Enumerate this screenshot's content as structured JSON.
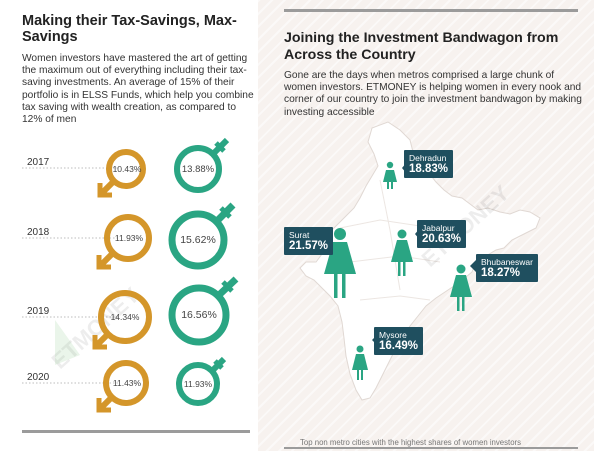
{
  "left": {
    "title": "Making their Tax-Savings, Max-Savings",
    "description": "Women investors have mastered the art of getting the maximum out of everything including their tax-saving investments. An average of 15% of their portfolio is in ELSS Funds, which help you combine tax saving with wealth creation, as compared to 12% of men",
    "rows": [
      {
        "year": "2017",
        "men": "10.43%",
        "women": "13.88%"
      },
      {
        "year": "2018",
        "men": "11.93%",
        "women": "15.62%"
      },
      {
        "year": "2019",
        "men": "14.34%",
        "women": "16.56%"
      },
      {
        "year": "2020",
        "men": "11.43%",
        "women": "11.93%"
      }
    ]
  },
  "right": {
    "title": "Joining the Investment Bandwagon from Across the Country",
    "description": "Gone are the days when metros comprised a large chunk of women investors. ETMONEY is helping women in every nook and corner of our country to join the investment bandwagon by making investing accessible",
    "cities": [
      {
        "name": "Dehradun",
        "value": "18.83%"
      },
      {
        "name": "Surat",
        "value": "21.57%"
      },
      {
        "name": "Jabalpur",
        "value": "20.63%"
      },
      {
        "name": "Bhubaneswar",
        "value": "18.27%"
      },
      {
        "name": "Mysore",
        "value": "16.49%"
      }
    ],
    "footnote": "Top non metro cities with the highest shares of women investors"
  },
  "watermark": "ETMONEY",
  "colors": {
    "men": "#d4962a",
    "women": "#2aa583",
    "callout": "#1f4f5f",
    "map": "#ffffff"
  }
}
